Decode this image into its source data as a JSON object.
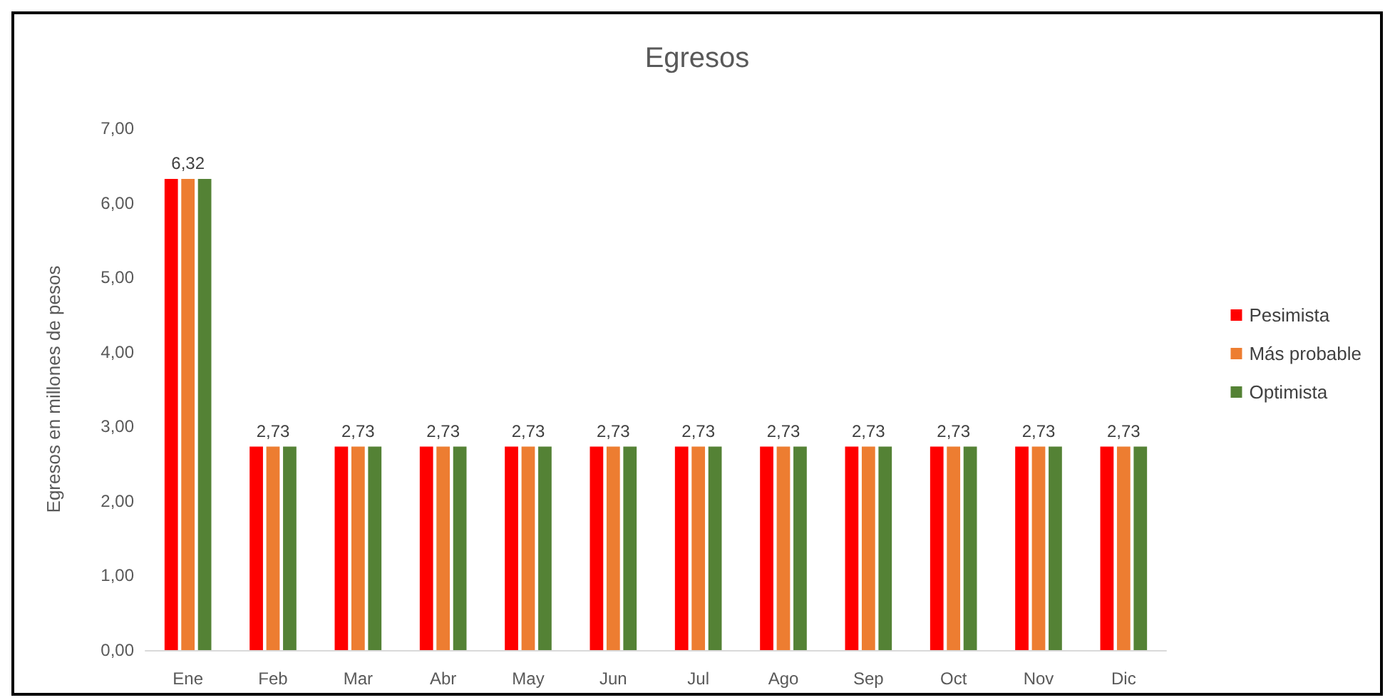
{
  "chart_data": {
    "type": "bar",
    "title": "Egresos",
    "ylabel": "Egresos en millones de pesos",
    "categories": [
      "Ene",
      "Feb",
      "Mar",
      "Abr",
      "May",
      "Jun",
      "Jul",
      "Ago",
      "Sep",
      "Oct",
      "Nov",
      "Dic"
    ],
    "series": [
      {
        "name": "Pesimista",
        "color": "#ff0000",
        "values": [
          6.32,
          2.73,
          2.73,
          2.73,
          2.73,
          2.73,
          2.73,
          2.73,
          2.73,
          2.73,
          2.73,
          2.73
        ]
      },
      {
        "name": "Más probable",
        "color": "#ed7d31",
        "values": [
          6.32,
          2.73,
          2.73,
          2.73,
          2.73,
          2.73,
          2.73,
          2.73,
          2.73,
          2.73,
          2.73,
          2.73
        ],
        "value_labels": [
          "6,32",
          "2,73",
          "2,73",
          "2,73",
          "2,73",
          "2,73",
          "2,73",
          "2,73",
          "2,73",
          "2,73",
          "2,73",
          "2,73"
        ]
      },
      {
        "name": "Optimista",
        "color": "#548235",
        "values": [
          6.32,
          2.73,
          2.73,
          2.73,
          2.73,
          2.73,
          2.73,
          2.73,
          2.73,
          2.73,
          2.73,
          2.73
        ]
      }
    ],
    "ylim": [
      0,
      7
    ],
    "yticks": [
      {
        "value": 0,
        "label": "0,00"
      },
      {
        "value": 1,
        "label": "1,00"
      },
      {
        "value": 2,
        "label": "2,00"
      },
      {
        "value": 3,
        "label": "3,00"
      },
      {
        "value": 4,
        "label": "4,00"
      },
      {
        "value": 5,
        "label": "5,00"
      },
      {
        "value": 6,
        "label": "6,00"
      },
      {
        "value": 7,
        "label": "7,00"
      }
    ],
    "grid": false,
    "legend": "right"
  }
}
